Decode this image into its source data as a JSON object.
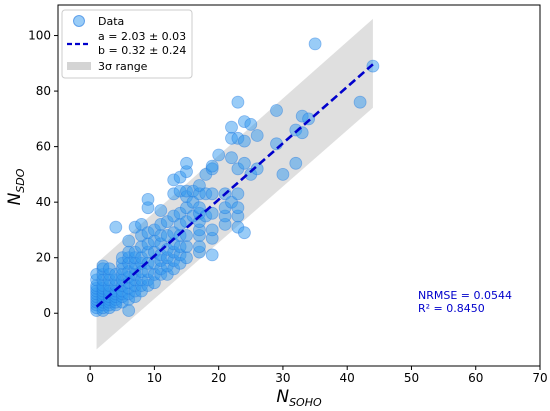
{
  "chart_data": {
    "type": "scatter",
    "xlabel": "N",
    "xlabel_sub": "SOHO",
    "ylabel": "N",
    "ylabel_sub": "SDO",
    "xlim": [
      -5,
      70
    ],
    "ylim": [
      -19,
      111
    ],
    "x_ticks": [
      0,
      10,
      20,
      30,
      40,
      50,
      60,
      70
    ],
    "y_ticks": [
      0,
      20,
      40,
      60,
      80,
      100
    ],
    "grid": false,
    "legend_position": "top-left",
    "legend": {
      "data_label": "Data",
      "fit_label_a": "a = 2.03 ± 0.03",
      "fit_label_b": "b = 0.32 ± 0.24",
      "band_label": "3σ range"
    },
    "fit": {
      "a": 2.03,
      "b": 0.32,
      "x_range": [
        1,
        44
      ]
    },
    "band": {
      "lower": [
        [
          1,
          -13
        ],
        [
          44,
          74
        ]
      ],
      "upper": [
        [
          1,
          18
        ],
        [
          44,
          106
        ]
      ]
    },
    "annotations": {
      "nrmse": "NRMSE = 0.0544",
      "r2": "R² = 0.8450"
    },
    "colors": {
      "points": "#3399f0",
      "points_edge": "#1f77e0",
      "fit": "#0000cc",
      "band": "#d4d4d4",
      "annotation": "#0000cc"
    },
    "points": [
      [
        1,
        1
      ],
      [
        1,
        2
      ],
      [
        1,
        3
      ],
      [
        1,
        4
      ],
      [
        1,
        5
      ],
      [
        1,
        6
      ],
      [
        1,
        7
      ],
      [
        1,
        8
      ],
      [
        1,
        9
      ],
      [
        1,
        10
      ],
      [
        1,
        12
      ],
      [
        1,
        14
      ],
      [
        2,
        1
      ],
      [
        2,
        2
      ],
      [
        2,
        3
      ],
      [
        2,
        4
      ],
      [
        2,
        5
      ],
      [
        2,
        6
      ],
      [
        2,
        7
      ],
      [
        2,
        8
      ],
      [
        2,
        9
      ],
      [
        2,
        10
      ],
      [
        2,
        12
      ],
      [
        2,
        14
      ],
      [
        2,
        16
      ],
      [
        2,
        17
      ],
      [
        3,
        2
      ],
      [
        3,
        3
      ],
      [
        3,
        4
      ],
      [
        3,
        5
      ],
      [
        3,
        6
      ],
      [
        3,
        7
      ],
      [
        3,
        8
      ],
      [
        3,
        10
      ],
      [
        3,
        12
      ],
      [
        3,
        14
      ],
      [
        3,
        16
      ],
      [
        4,
        3
      ],
      [
        4,
        4
      ],
      [
        4,
        5
      ],
      [
        4,
        6
      ],
      [
        4,
        7
      ],
      [
        4,
        8
      ],
      [
        4,
        10
      ],
      [
        4,
        12
      ],
      [
        4,
        14
      ],
      [
        4,
        31
      ],
      [
        5,
        4
      ],
      [
        5,
        6
      ],
      [
        5,
        7
      ],
      [
        5,
        8
      ],
      [
        5,
        10
      ],
      [
        5,
        12
      ],
      [
        5,
        14
      ],
      [
        5,
        16
      ],
      [
        5,
        18
      ],
      [
        5,
        20
      ],
      [
        6,
        1
      ],
      [
        6,
        5
      ],
      [
        6,
        7
      ],
      [
        6,
        9
      ],
      [
        6,
        11
      ],
      [
        6,
        13
      ],
      [
        6,
        15
      ],
      [
        6,
        18
      ],
      [
        6,
        20
      ],
      [
        6,
        22
      ],
      [
        6,
        26
      ],
      [
        7,
        6
      ],
      [
        7,
        8
      ],
      [
        7,
        10
      ],
      [
        7,
        12
      ],
      [
        7,
        14
      ],
      [
        7,
        16
      ],
      [
        7,
        18
      ],
      [
        7,
        20
      ],
      [
        7,
        22
      ],
      [
        7,
        31
      ],
      [
        8,
        8
      ],
      [
        8,
        10
      ],
      [
        8,
        12
      ],
      [
        8,
        15
      ],
      [
        8,
        18
      ],
      [
        8,
        20
      ],
      [
        8,
        24
      ],
      [
        8,
        28
      ],
      [
        8,
        32
      ],
      [
        9,
        10
      ],
      [
        9,
        12
      ],
      [
        9,
        15
      ],
      [
        9,
        18
      ],
      [
        9,
        22
      ],
      [
        9,
        25
      ],
      [
        9,
        29
      ],
      [
        9,
        38
      ],
      [
        9,
        41
      ],
      [
        10,
        11
      ],
      [
        10,
        14
      ],
      [
        10,
        18
      ],
      [
        10,
        22
      ],
      [
        10,
        26
      ],
      [
        10,
        30
      ],
      [
        11,
        14
      ],
      [
        11,
        16
      ],
      [
        11,
        19
      ],
      [
        11,
        21
      ],
      [
        11,
        25
      ],
      [
        11,
        28
      ],
      [
        11,
        32
      ],
      [
        11,
        37
      ],
      [
        12,
        14
      ],
      [
        12,
        17
      ],
      [
        12,
        20
      ],
      [
        12,
        23
      ],
      [
        12,
        28
      ],
      [
        12,
        33
      ],
      [
        13,
        16
      ],
      [
        13,
        19
      ],
      [
        13,
        22
      ],
      [
        13,
        25
      ],
      [
        13,
        29
      ],
      [
        13,
        35
      ],
      [
        13,
        43
      ],
      [
        13,
        48
      ],
      [
        14,
        18
      ],
      [
        14,
        21
      ],
      [
        14,
        24
      ],
      [
        14,
        28
      ],
      [
        14,
        32
      ],
      [
        14,
        36
      ],
      [
        14,
        44
      ],
      [
        14,
        49
      ],
      [
        15,
        20
      ],
      [
        15,
        24
      ],
      [
        15,
        28
      ],
      [
        15,
        33
      ],
      [
        15,
        38
      ],
      [
        15,
        42
      ],
      [
        15,
        44
      ],
      [
        15,
        51
      ],
      [
        15,
        54
      ],
      [
        16,
        35
      ],
      [
        16,
        40
      ],
      [
        16,
        44
      ],
      [
        17,
        22
      ],
      [
        17,
        24
      ],
      [
        17,
        28
      ],
      [
        17,
        30
      ],
      [
        17,
        33
      ],
      [
        17,
        36
      ],
      [
        17,
        38
      ],
      [
        17,
        43
      ],
      [
        17,
        46
      ],
      [
        18,
        35
      ],
      [
        18,
        43
      ],
      [
        18,
        50
      ],
      [
        19,
        21
      ],
      [
        19,
        27
      ],
      [
        19,
        30
      ],
      [
        19,
        36
      ],
      [
        19,
        43
      ],
      [
        19,
        52
      ],
      [
        19,
        53
      ],
      [
        20,
        57
      ],
      [
        21,
        32
      ],
      [
        21,
        35
      ],
      [
        21,
        38
      ],
      [
        21,
        43
      ],
      [
        22,
        40
      ],
      [
        22,
        56
      ],
      [
        22,
        63
      ],
      [
        22,
        67
      ],
      [
        23,
        31
      ],
      [
        23,
        35
      ],
      [
        23,
        38
      ],
      [
        23,
        43
      ],
      [
        23,
        52
      ],
      [
        23,
        63
      ],
      [
        23,
        76
      ],
      [
        24,
        29
      ],
      [
        24,
        54
      ],
      [
        24,
        62
      ],
      [
        24,
        69
      ],
      [
        25,
        50
      ],
      [
        25,
        68
      ],
      [
        26,
        52
      ],
      [
        26,
        64
      ],
      [
        29,
        61
      ],
      [
        29,
        73
      ],
      [
        30,
        50
      ],
      [
        32,
        54
      ],
      [
        32,
        66
      ],
      [
        33,
        65
      ],
      [
        33,
        71
      ],
      [
        34,
        70
      ],
      [
        35,
        97
      ],
      [
        42,
        76
      ],
      [
        44,
        89
      ]
    ]
  }
}
